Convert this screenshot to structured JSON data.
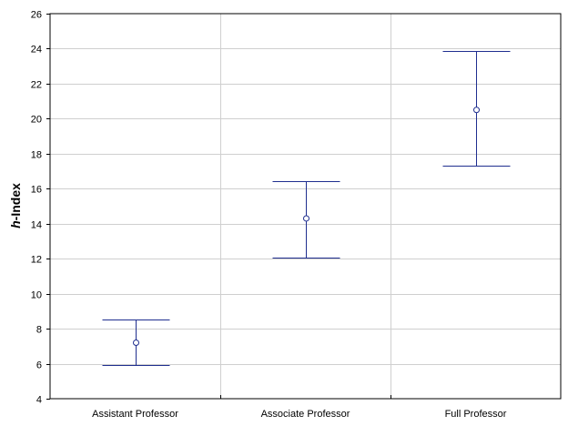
{
  "chart_data": {
    "type": "errorbar",
    "title": "",
    "xlabel": "",
    "ylabel_italic": "h",
    "ylabel_rest": "-Index",
    "ylim": [
      4,
      26
    ],
    "yticks": [
      4,
      6,
      8,
      10,
      12,
      14,
      16,
      18,
      20,
      22,
      24,
      26
    ],
    "categories": [
      "Assistant Professor",
      "Associate Professor",
      "Full Professor"
    ],
    "mean": [
      7.2,
      14.3,
      20.5
    ],
    "lower": [
      5.95,
      12.05,
      17.3
    ],
    "upper": [
      8.5,
      16.45,
      23.85
    ],
    "grid": true,
    "colors": {
      "series": "#1f2e8f",
      "grid": "#cfcfcf",
      "axis": "#000000"
    }
  }
}
